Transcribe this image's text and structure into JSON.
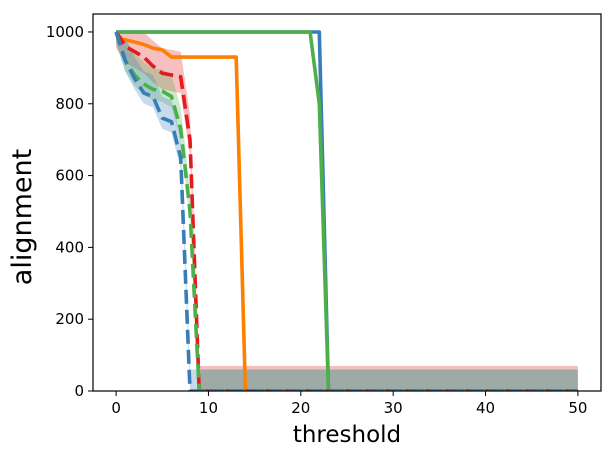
{
  "chart_data": {
    "type": "line",
    "xlabel": "threshold",
    "ylabel": "alignment",
    "xlim": [
      -2.5,
      52.5
    ],
    "ylim": [
      0,
      1050
    ],
    "xticks": [
      0,
      10,
      20,
      30,
      40,
      50
    ],
    "yticks": [
      0,
      200,
      400,
      600,
      800,
      1000
    ],
    "grid": false,
    "series": [
      {
        "color": "#377eb8",
        "dash": "solid",
        "x": [
          0,
          22,
          23,
          50
        ],
        "y": [
          1000,
          1000,
          0,
          0
        ]
      },
      {
        "color": "#4daf4a",
        "dash": "solid",
        "x": [
          0,
          21,
          22,
          23,
          50
        ],
        "y": [
          1000,
          1000,
          800,
          0,
          0
        ]
      },
      {
        "color": "#ff7f00",
        "dash": "solid",
        "x": [
          0,
          0.5,
          1,
          2,
          3,
          4,
          5,
          6,
          13,
          14,
          50
        ],
        "y": [
          1000,
          980,
          978,
          972,
          965,
          955,
          950,
          930,
          930,
          0,
          0
        ]
      },
      {
        "color": "#e41a1c",
        "dash": "dashed",
        "band": [
          45,
          70
        ],
        "x": [
          0,
          1,
          2,
          3,
          4,
          5,
          6,
          7,
          8,
          9,
          10,
          50
        ],
        "y": [
          1000,
          960,
          945,
          930,
          905,
          885,
          880,
          875,
          700,
          0,
          0,
          0
        ]
      },
      {
        "color": "#4daf4a",
        "dash": "dashed",
        "band": [
          30,
          60
        ],
        "x": [
          0,
          1,
          2,
          3,
          4,
          5,
          6,
          7,
          8,
          9,
          50
        ],
        "y": [
          1000,
          920,
          880,
          855,
          840,
          835,
          820,
          730,
          500,
          0,
          0
        ]
      },
      {
        "color": "#377eb8",
        "dash": "dashed",
        "band": [
          30,
          60
        ],
        "x": [
          0,
          1,
          2,
          3,
          4,
          5,
          6,
          7,
          8,
          9,
          50
        ],
        "y": [
          1000,
          920,
          870,
          830,
          820,
          760,
          750,
          650,
          0,
          0,
          0
        ]
      }
    ]
  }
}
